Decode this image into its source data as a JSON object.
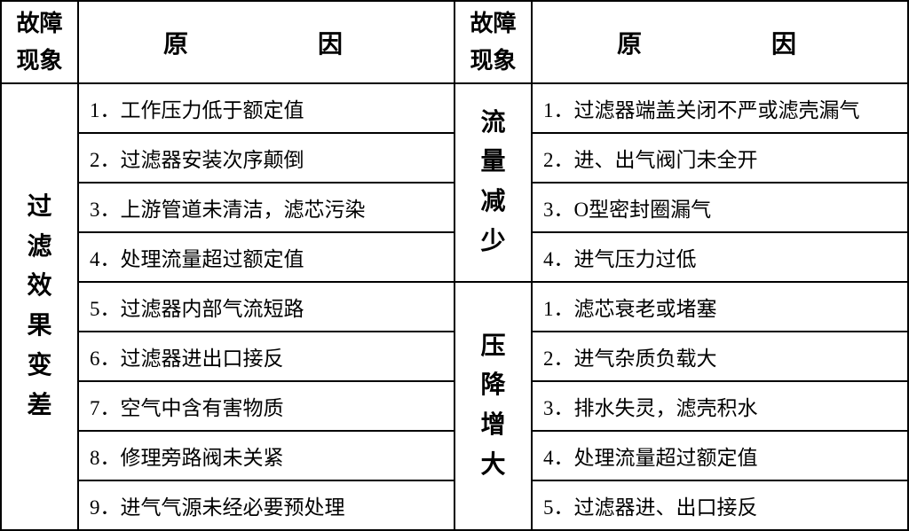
{
  "headers": {
    "phenomenon": "故障现象",
    "reason": "原　　因"
  },
  "leftSection": {
    "phenomenon": "过滤效果变差",
    "reasons": [
      "1．工作压力低于额定值",
      "2．过滤器安装次序颠倒",
      "3．上游管道未清洁，滤芯污染",
      "4．处理流量超过额定值",
      "5．过滤器内部气流短路",
      "6．过滤器进出口接反",
      "7．空气中含有害物质",
      "8．修理旁路阀未关紧",
      "9．进气气源未经必要预处理"
    ]
  },
  "rightTop": {
    "phenomenon": "流量减少",
    "reasons": [
      "1．过滤器端盖关闭不严或滤壳漏气",
      "2．进、出气阀门未全开",
      "3．O型密封圈漏气",
      "4．进气压力过低"
    ]
  },
  "rightBottom": {
    "phenomenon": "压降增大",
    "reasons": [
      "1．滤芯衰老或堵塞",
      "2．进气杂质负载大",
      "3．排水失灵，滤壳积水",
      "4．处理流量超过额定值",
      "5．过滤器进、出口接反"
    ]
  },
  "styling": {
    "border_color": "#000000",
    "border_width": 2,
    "background_color": "#ffffff",
    "text_color": "#000000",
    "header_fontsize": 26,
    "phenomenon_fontsize": 28,
    "reason_fontsize": 23,
    "font_family": "SimSun"
  }
}
